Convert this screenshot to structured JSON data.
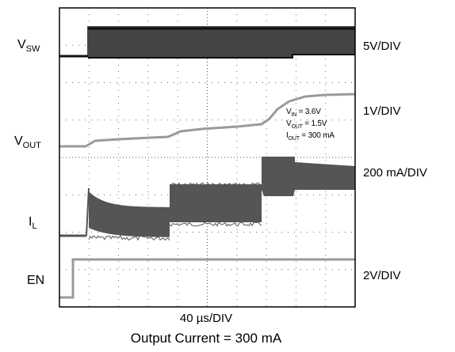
{
  "chart_data": {
    "type": "line",
    "title": "",
    "caption": "Output Current = 300 mA",
    "xlabel": "40 µs/DIV",
    "grid": true,
    "x_divisions": 10,
    "y_divisions": 8,
    "channels": [
      {
        "name_main": "V",
        "name_sub": "SW",
        "scale": "5V/DIV",
        "color": "#111111",
        "description": "switch node: low before enable, switching band after"
      },
      {
        "name_main": "V",
        "name_sub": "OUT",
        "scale": "1V/DIV",
        "color": "#9a9a9a",
        "description": "output voltage soft-start ramp in steps"
      },
      {
        "name_main": "I",
        "name_sub": "L",
        "scale": "200 mA/DIV",
        "color": "#555555",
        "description": "inductor current steps up with switching ripple"
      },
      {
        "name_main": "EN",
        "name_sub": "",
        "scale": "2V/DIV",
        "color": "#9a9a9a",
        "description": "enable step from low to high"
      }
    ],
    "conditions": [
      {
        "sym": "V",
        "sub": "IN",
        "value": " = 3.6V"
      },
      {
        "sym": "V",
        "sub": "OUT",
        "value": " = 1.5V"
      },
      {
        "sym": "I",
        "sub": "OUT",
        "value": " = 300 mA"
      }
    ]
  },
  "colors": {
    "frame": "#000000",
    "grid_dots": "#666666",
    "ripple_band": "#555555",
    "gray_trace": "#9a9a9a",
    "dark_trace": "#111111"
  }
}
